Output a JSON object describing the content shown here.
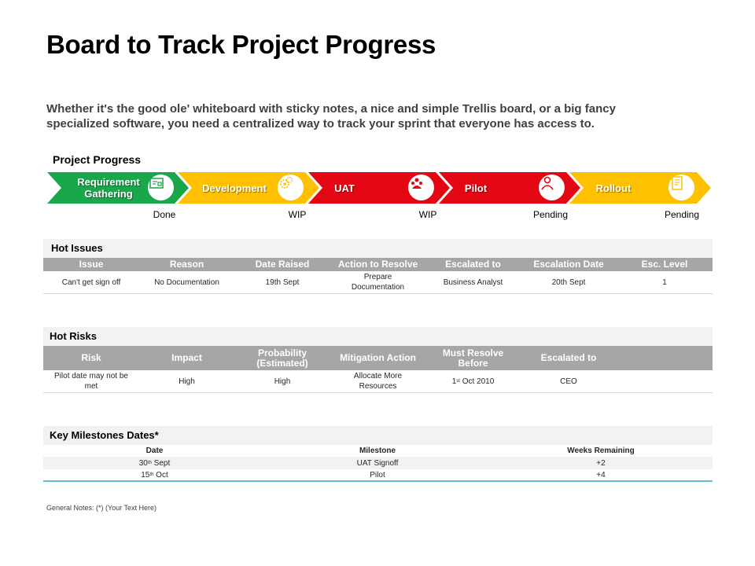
{
  "title": "Board to Track Project Progress",
  "subtitle": "Whether it's the good ole' whiteboard with sticky notes, a nice and simple Trellis board, or a big fancy specialized software, you need a centralized way to track your sprint that everyone has access to.",
  "progress": {
    "label": "Project Progress",
    "stages": [
      {
        "name": "Requirement Gathering",
        "status": "Done",
        "color": "#1aa64a",
        "icon": "blueprint-icon"
      },
      {
        "name": "Development",
        "status": "WIP",
        "color": "#ffc000",
        "icon": "gears-icon"
      },
      {
        "name": "UAT",
        "status": "WIP",
        "color": "#e30613",
        "icon": "team-icon"
      },
      {
        "name": "Pilot",
        "status": "Pending",
        "color": "#e30613",
        "icon": "person-icon"
      },
      {
        "name": "Rollout",
        "status": "Pending",
        "color": "#ffc000",
        "icon": "document-icon"
      }
    ]
  },
  "hot_issues": {
    "heading": "Hot Issues",
    "columns": [
      "Issue",
      "Reason",
      "Date Raised",
      "Action to Resolve",
      "Escalated to",
      "Escalation Date",
      "Esc. Level"
    ],
    "rows": [
      [
        "Can't get sign off",
        "No Documentation",
        "19th Sept",
        "Prepare Documentation",
        "Business Analyst",
        "20th Sept",
        "1"
      ]
    ]
  },
  "hot_risks": {
    "heading": "Hot Risks",
    "columns": [
      "Risk",
      "Impact",
      "Probability (Estimated)",
      "Mitigation Action",
      "Must Resolve Before",
      "Escalated to",
      ""
    ],
    "rows": [
      [
        "Pilot date may not be met",
        "High",
        "High",
        "Allocate More Resources",
        "1st Oct 2010",
        "CEO",
        ""
      ]
    ]
  },
  "milestones": {
    "heading": "Key Milestones Dates*",
    "columns": [
      "Date",
      "Milestone",
      "Weeks Remaining"
    ],
    "rows": [
      {
        "day": "30",
        "suffix": "th",
        "rest": " Sept",
        "milestone": "UAT Signoff",
        "weeks": "+2"
      },
      {
        "day": "15",
        "suffix": "th",
        "rest": " Oct",
        "milestone": "Pilot",
        "weeks": "+4"
      }
    ]
  },
  "notes": "General Notes: (*) (Your Text Here)"
}
